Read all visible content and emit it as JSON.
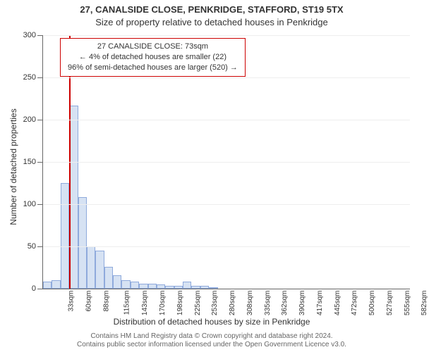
{
  "titles": {
    "line1": "27, CANALSIDE CLOSE, PENKRIDGE, STAFFORD, ST19 5TX",
    "line2": "Size of property relative to detached houses in Penkridge"
  },
  "axes": {
    "ylabel": "Number of detached properties",
    "xlabel": "Distribution of detached houses by size in Penkridge",
    "ylim_max": 300,
    "ytick_step": 50,
    "xtick_labels": [
      "33sqm",
      "60sqm",
      "88sqm",
      "115sqm",
      "143sqm",
      "170sqm",
      "198sqm",
      "225sqm",
      "253sqm",
      "280sqm",
      "308sqm",
      "335sqm",
      "362sqm",
      "390sqm",
      "417sqm",
      "445sqm",
      "472sqm",
      "500sqm",
      "527sqm",
      "555sqm",
      "582sqm"
    ]
  },
  "chart": {
    "type": "histogram",
    "bar_fill": "#d6e2f3",
    "bar_stroke": "#8faadc",
    "marker_color": "#cc0000",
    "background": "#ffffff",
    "grid_color": "#eeeeee",
    "values": [
      8,
      10,
      125,
      217,
      108,
      50,
      45,
      26,
      16,
      10,
      8,
      6,
      6,
      5,
      3,
      3,
      8,
      3,
      3,
      2,
      0,
      0,
      0,
      0,
      0,
      0,
      0,
      0,
      0,
      0,
      0,
      0,
      0,
      0,
      0,
      0,
      0,
      0,
      0,
      0,
      0,
      0
    ],
    "marker": {
      "bin_index": 3,
      "value_sqm": 73
    }
  },
  "info_box": {
    "line1": "27 CANALSIDE CLOSE: 73sqm",
    "line2": "← 4% of detached houses are smaller (22)",
    "line3": "96% of semi-detached houses are larger (520) →"
  },
  "footer": {
    "line1": "Contains HM Land Registry data © Crown copyright and database right 2024.",
    "line2": "Contains public sector information licensed under the Open Government Licence v3.0."
  }
}
